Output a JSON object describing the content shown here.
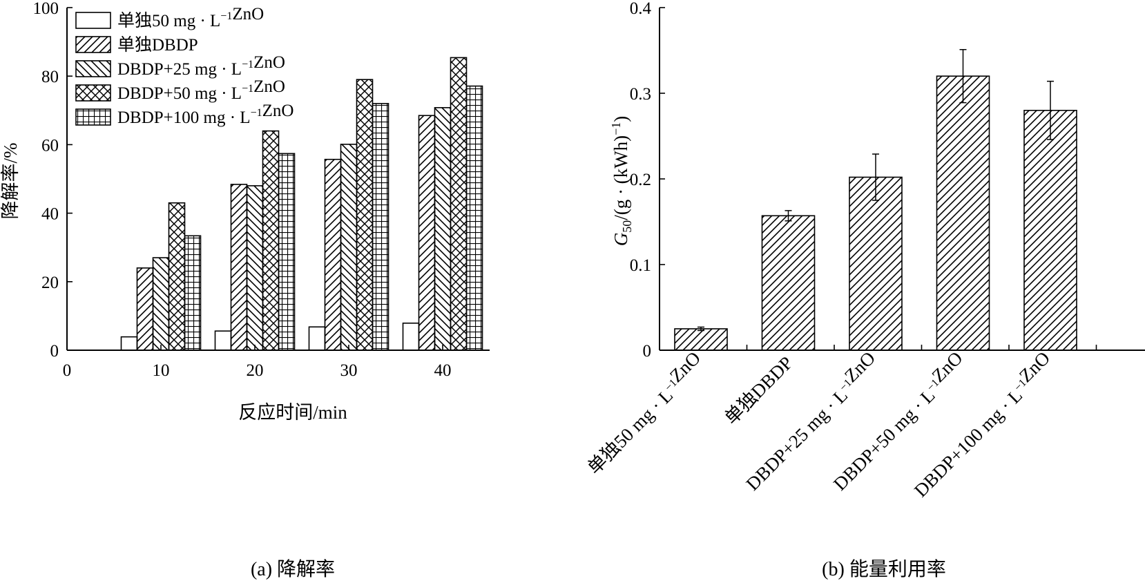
{
  "chart_data": [
    {
      "type": "bar",
      "caption": "(a) 降解率",
      "xlabel": "反应时间/min",
      "ylabel": "降解率/%",
      "xlim": [
        0,
        45
      ],
      "ylim": [
        0,
        100
      ],
      "xticks": [
        0,
        10,
        20,
        30,
        40
      ],
      "yticks": [
        0,
        20,
        40,
        60,
        80,
        100
      ],
      "categories": [
        "10",
        "20",
        "30",
        "40"
      ],
      "category_x": [
        10,
        20,
        30,
        40
      ],
      "legend_position": "top-left",
      "series": [
        {
          "name": "单独50 mg · L⁻¹ZnO",
          "pattern": "none",
          "values": [
            3.9,
            5.6,
            6.8,
            7.9
          ]
        },
        {
          "name": "单独DBDP",
          "pattern": "hatch-right",
          "values": [
            24.0,
            48.4,
            55.7,
            68.5
          ]
        },
        {
          "name": "DBDP+25 mg · L⁻¹ZnO",
          "pattern": "hatch-left",
          "values": [
            27.0,
            48.0,
            60.1,
            70.8
          ]
        },
        {
          "name": "DBDP+50 mg · L⁻¹ZnO",
          "pattern": "crosshatch",
          "values": [
            43.0,
            64.0,
            79.0,
            85.4
          ]
        },
        {
          "name": "DBDP+100 mg · L⁻¹ZnO",
          "pattern": "grid",
          "values": [
            33.4,
            57.4,
            72.0,
            77.1
          ]
        }
      ]
    },
    {
      "type": "bar",
      "caption": "(b) 能量利用率",
      "ylabel_main": "G",
      "ylabel_sub": "50",
      "ylabel_rest": "/(g · (kWh)",
      "ylabel_sup": "−1",
      "ylabel_end": ")",
      "ylim": [
        0,
        0.4
      ],
      "yticks": [
        "0",
        "0.1",
        "0.2",
        "0.3",
        "0.4"
      ],
      "categories": [
        "单独50 mg · L⁻¹ZnO",
        "单独DBDP",
        "DBDP+25 mg · L⁻¹ZnO",
        "DBDP+50 mg · L⁻¹ZnO",
        "DBDP+100 mg · L⁻¹ZnO"
      ],
      "values": [
        0.025,
        0.157,
        0.202,
        0.32,
        0.28
      ],
      "errors": [
        0.002,
        0.006,
        0.027,
        0.031,
        0.034
      ],
      "pattern": "hatch-right"
    }
  ]
}
